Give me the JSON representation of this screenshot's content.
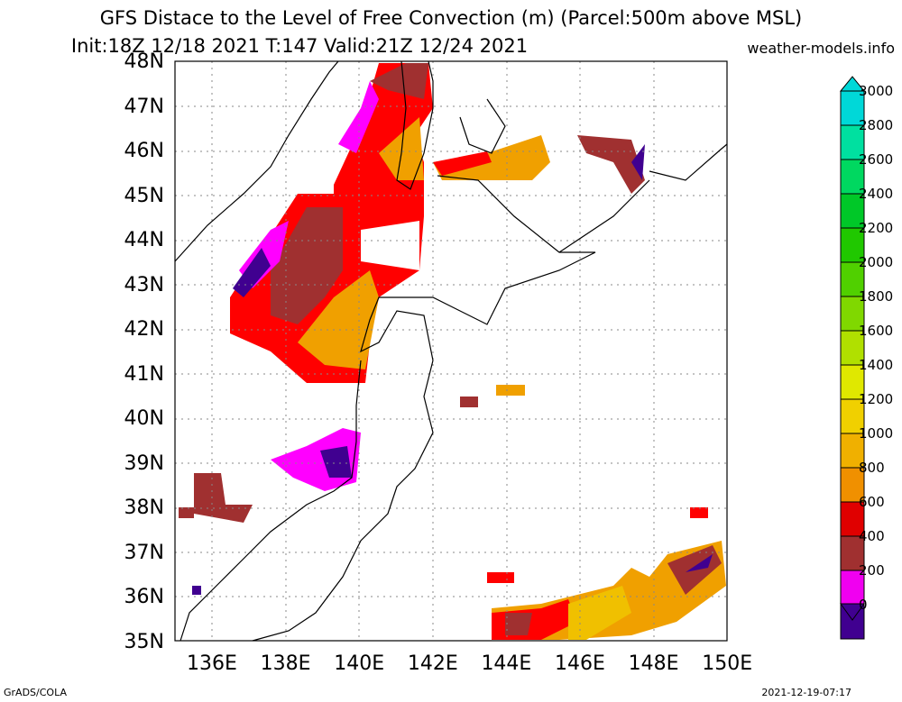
{
  "title_line1": "GFS Distace to the Level of Free Convection (m) (Parcel:500m above MSL)",
  "title_line2": "Init:18Z 12/18 2021 T:147 Valid:21Z 12/24 2021",
  "site": "weather-models.info",
  "lat_labels": [
    "48N",
    "47N",
    "46N",
    "45N",
    "44N",
    "43N",
    "42N",
    "41N",
    "40N",
    "39N",
    "38N",
    "37N",
    "36N",
    "35N"
  ],
  "lon_labels": [
    "136E",
    "138E",
    "140E",
    "142E",
    "144E",
    "146E",
    "148E",
    "150E"
  ],
  "colorbar": {
    "labels": [
      "3000",
      "2800",
      "2600",
      "2400",
      "2200",
      "2000",
      "1800",
      "1600",
      "1400",
      "1200",
      "1000",
      "800",
      "600",
      "400",
      "200",
      "0"
    ],
    "colors": [
      "#00d8d8",
      "#00e0a0",
      "#00d860",
      "#00c828",
      "#20c800",
      "#50d000",
      "#80d800",
      "#b0e000",
      "#e0e800",
      "#f0d000",
      "#f0b000",
      "#f09000",
      "#e00000",
      "#a03030",
      "#f000f0",
      "#400090"
    ]
  },
  "footer_left": "GrADS/COLA",
  "footer_right": "2021-12-19-07:17"
}
